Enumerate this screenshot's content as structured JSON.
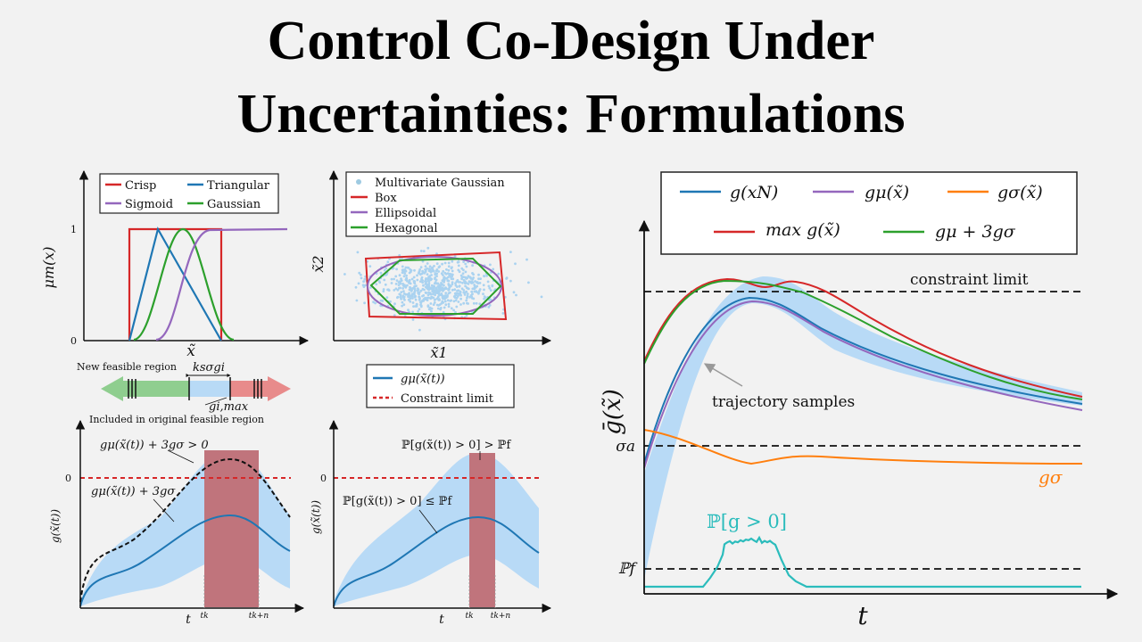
{
  "title": {
    "line1": "Control Co-Design Under",
    "line2": "Uncertainties: Formulations"
  },
  "chart_data": [
    {
      "id": "membership",
      "type": "line",
      "ylabel": "μm(x)",
      "xlabel": "x̃",
      "yticks": [
        "0",
        "1"
      ],
      "legend": [
        "Crisp",
        "Triangular",
        "Sigmoid",
        "Gaussian"
      ],
      "colors": {
        "Crisp": "#d62728",
        "Triangular": "#1f77b4",
        "Sigmoid": "#9467bd",
        "Gaussian": "#2ca02c"
      }
    },
    {
      "id": "scatter-sets",
      "type": "scatter",
      "xlabel": "x̃1",
      "ylabel": "x̃2",
      "legend": [
        "Multivariate Gaussian",
        "Box",
        "Ellipsoidal",
        "Hexagonal"
      ],
      "colors": {
        "Multivariate Gaussian": "#9ecae1",
        "Box": "#d62728",
        "Ellipsoidal": "#9467bd",
        "Hexagonal": "#2ca02c"
      }
    },
    {
      "id": "feasible-region",
      "type": "other",
      "labels": {
        "new_region": "New feasible region",
        "margin": "ksσgi",
        "gimax": "gi,max",
        "included": "Included in original feasible region"
      }
    },
    {
      "id": "worst-case",
      "type": "area",
      "ylabel": "g(x̃(t))",
      "xlabel": "t",
      "y0": "0",
      "xticks": [
        "tk",
        "tk+n"
      ],
      "annotations": [
        "gμ(x̃(t)) + 3gσ > 0",
        "gμ(x̃(t)) + 3gσ"
      ]
    },
    {
      "id": "chance",
      "type": "area",
      "ylabel": "g(x̃(t))",
      "xlabel": "t",
      "y0": "0",
      "xticks": [
        "tk",
        "tk+n"
      ],
      "legend": [
        "gμ(x̃(t))",
        "Constraint limit"
      ],
      "annotations": [
        "ℙ[g(x̃(t)) > 0] > ℙf",
        "ℙ[g(x̃(t)) > 0] ≤ ℙf"
      ]
    },
    {
      "id": "main",
      "type": "line",
      "ylabel": "ḡ(x̃)",
      "xlabel": "t",
      "legend": [
        "g(xN)",
        "gμ(x̃)",
        "gσ(x̃)",
        "max g(x̃)",
        "gμ + 3gσ"
      ],
      "colors": {
        "g(xN)": "#1f77b4",
        "gμ(x̃)": "#9467bd",
        "gσ(x̃)": "#ff7f0e",
        "max g(x̃)": "#d62728",
        "gμ + 3gσ": "#2ca02c"
      },
      "annotations": [
        "constraint limit",
        "trajectory samples",
        "gσ",
        "ℙ[g > 0]"
      ],
      "ytick_labels": [
        "σa",
        "ℙf"
      ]
    }
  ]
}
